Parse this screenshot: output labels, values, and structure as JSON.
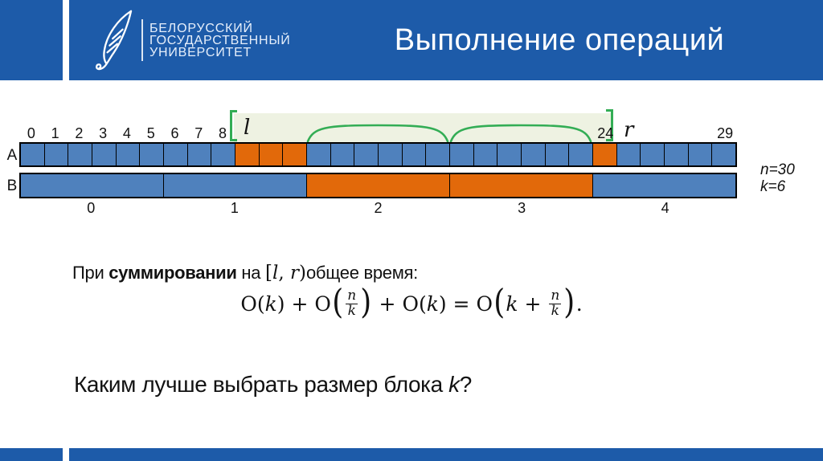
{
  "header": {
    "title": "Выполнение операций",
    "logo": {
      "lines": [
        "БЕЛОРУССКИЙ",
        "ГОСУДАРСТВЕННЫЙ",
        "УНИВЕРСИТЕТ"
      ]
    }
  },
  "diagram": {
    "row_a_label": "A",
    "row_b_label": "B",
    "array_a": {
      "n_cells": 30,
      "orange_cells": [
        9,
        10,
        11,
        24
      ]
    },
    "top_labels": [
      {
        "cell": 0,
        "text": "0"
      },
      {
        "cell": 1,
        "text": "1"
      },
      {
        "cell": 2,
        "text": "2"
      },
      {
        "cell": 3,
        "text": "3"
      },
      {
        "cell": 4,
        "text": "4"
      },
      {
        "cell": 5,
        "text": "5"
      },
      {
        "cell": 6,
        "text": "6"
      },
      {
        "cell": 7,
        "text": "7"
      },
      {
        "cell": 8,
        "text": "8"
      },
      {
        "cell": 24,
        "text": "24"
      },
      {
        "cell": 29,
        "text": "29"
      }
    ],
    "range_labels": {
      "l": "l",
      "r": "r"
    },
    "array_b": {
      "blocks": [
        {
          "label": "0",
          "orange": false
        },
        {
          "label": "1",
          "orange": false
        },
        {
          "label": "2",
          "orange": true
        },
        {
          "label": "3",
          "orange": true
        },
        {
          "label": "4",
          "orange": false
        }
      ]
    },
    "params": {
      "n": "n=30",
      "k": "k=6"
    }
  },
  "body_text": {
    "line1": {
      "p1": "При ",
      "bold": "суммировании",
      "p2": " на ",
      "math_open": "[",
      "math_l": "l",
      "math_comma": ", ",
      "math_r": "r",
      "math_close": ")",
      "p3": "общее время:"
    },
    "question": {
      "p1": "Каким лучше выбрать размер блока ",
      "var": "k",
      "p2": "?"
    }
  },
  "formula": {
    "tokens": [
      {
        "t": "rm",
        "v": "O("
      },
      {
        "t": "it",
        "v": "k"
      },
      {
        "t": "rm",
        "v": ") + O"
      },
      {
        "t": "lp"
      },
      {
        "t": "frac",
        "n": "n",
        "d": "k"
      },
      {
        "t": "rp"
      },
      {
        "t": "rm",
        "v": " + O("
      },
      {
        "t": "it",
        "v": "k"
      },
      {
        "t": "rm",
        "v": ") = O"
      },
      {
        "t": "lp"
      },
      {
        "t": "it",
        "v": "k"
      },
      {
        "t": "rm",
        "v": " + "
      },
      {
        "t": "frac",
        "n": "n",
        "d": "k"
      },
      {
        "t": "rp"
      },
      {
        "t": "rm",
        "v": "."
      }
    ]
  },
  "colors": {
    "header_blue": "#1d5ba9",
    "cell_blue": "#4f81bd",
    "orange": "#e2690a",
    "green": "#33ad55",
    "light_green": "#eef2e2"
  }
}
